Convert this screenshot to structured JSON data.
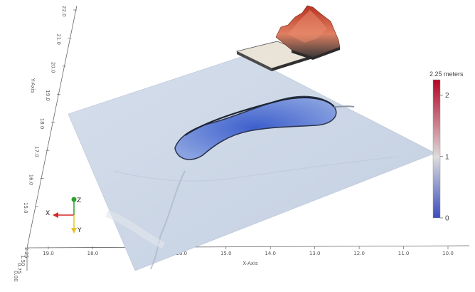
{
  "viewer": {
    "x_axis_label": "X-Axis",
    "y_axis_label": "Y-Axis",
    "x_ticks": [
      "19.0",
      "18.0",
      "17.0",
      "16.0",
      "15.0",
      "14.0",
      "13.0",
      "12.0",
      "11.0",
      "10.0"
    ],
    "y_ticks": [
      "22.0",
      "21.0",
      "20.0",
      "19.0",
      "18.0",
      "17.0",
      "16.0",
      "15.0"
    ],
    "z_ticks": [
      "0.00",
      "0.75",
      "1.50",
      "2.25"
    ]
  },
  "colorbar": {
    "title": "2.25 meters",
    "ticks": [
      "2",
      "1",
      "0"
    ],
    "range": [
      0,
      2.25
    ],
    "colors": {
      "high": "#b40426",
      "mid": "#dddcdc",
      "low": "#3b4cc0"
    }
  },
  "orientation_gizmo": {
    "x_label": "X",
    "y_label": "Y",
    "z_label": "Z",
    "colors": {
      "x": "#d62728",
      "y": "#e6c229",
      "z": "#2ca02c"
    }
  },
  "surface": {
    "base_color": "#c8d4e6",
    "depression_color": "#4f6fd6",
    "mound_color": "#c8402a",
    "slab_color": "#e9e3d8"
  }
}
